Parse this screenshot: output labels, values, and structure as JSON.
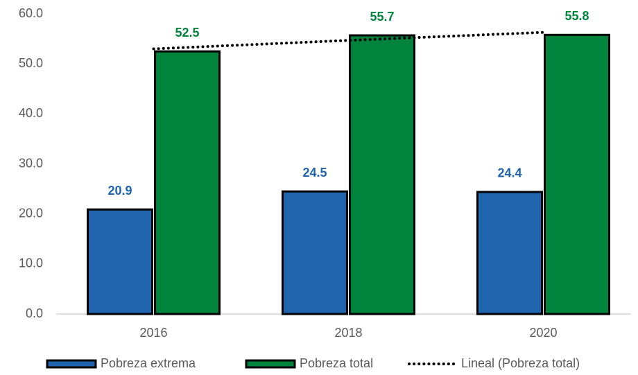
{
  "chart_data": {
    "type": "bar",
    "categories": [
      "2016",
      "2018",
      "2020"
    ],
    "series": [
      {
        "name": "Pobreza extrema",
        "color": "#1f64ad",
        "values": [
          20.9,
          24.5,
          24.4
        ]
      },
      {
        "name": "Pobreza total",
        "color": "#00843d",
        "values": [
          52.5,
          55.7,
          55.8
        ]
      },
      {
        "name": "Lineal (Pobreza total)",
        "color": "#000000",
        "type": "line",
        "style": "dotted",
        "values": [
          53.0,
          54.7,
          56.3
        ]
      }
    ],
    "ylim": [
      0,
      60
    ],
    "yticks": [
      {
        "value": 0,
        "label": "0.0"
      },
      {
        "value": 10,
        "label": "10.0"
      },
      {
        "value": 20,
        "label": "20.0"
      },
      {
        "value": 30,
        "label": "30.0"
      },
      {
        "value": 40,
        "label": "40.0"
      },
      {
        "value": 50,
        "label": "50.0"
      },
      {
        "value": 60,
        "label": "60.0"
      }
    ],
    "grid": false,
    "legend": "bottom"
  }
}
